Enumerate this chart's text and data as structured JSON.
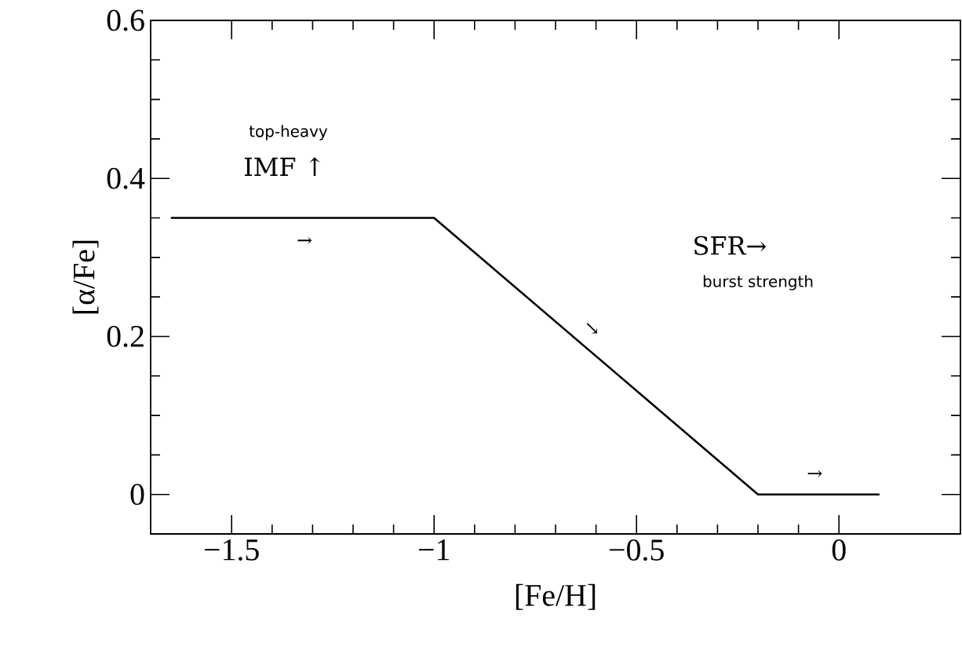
{
  "chart_data": {
    "type": "line",
    "xlabel": "[Fe/H]",
    "ylabel": "[α/Fe]",
    "x": [
      -1.65,
      -1,
      -0.2,
      0.1
    ],
    "series": [
      {
        "color": "#000000",
        "values": [
          0.35,
          0.35,
          0,
          0
        ]
      }
    ],
    "xlim": [
      -1.7,
      0.3
    ],
    "ylim": [
      -0.05,
      0.6
    ],
    "xticks": [
      {
        "value": -1.5,
        "label": "−1.5"
      },
      {
        "value": -1,
        "label": "−1"
      },
      {
        "value": -0.5,
        "label": "−0.5"
      },
      0
    ],
    "yticks": [
      0,
      0.2,
      0.4,
      0.6
    ],
    "grid": false,
    "marker": "none",
    "line_style": "solid",
    "annotations": [
      "top-heavy",
      "IMF ↑",
      "SFR→",
      "burst strength",
      "→",
      "↘",
      "→"
    ]
  }
}
